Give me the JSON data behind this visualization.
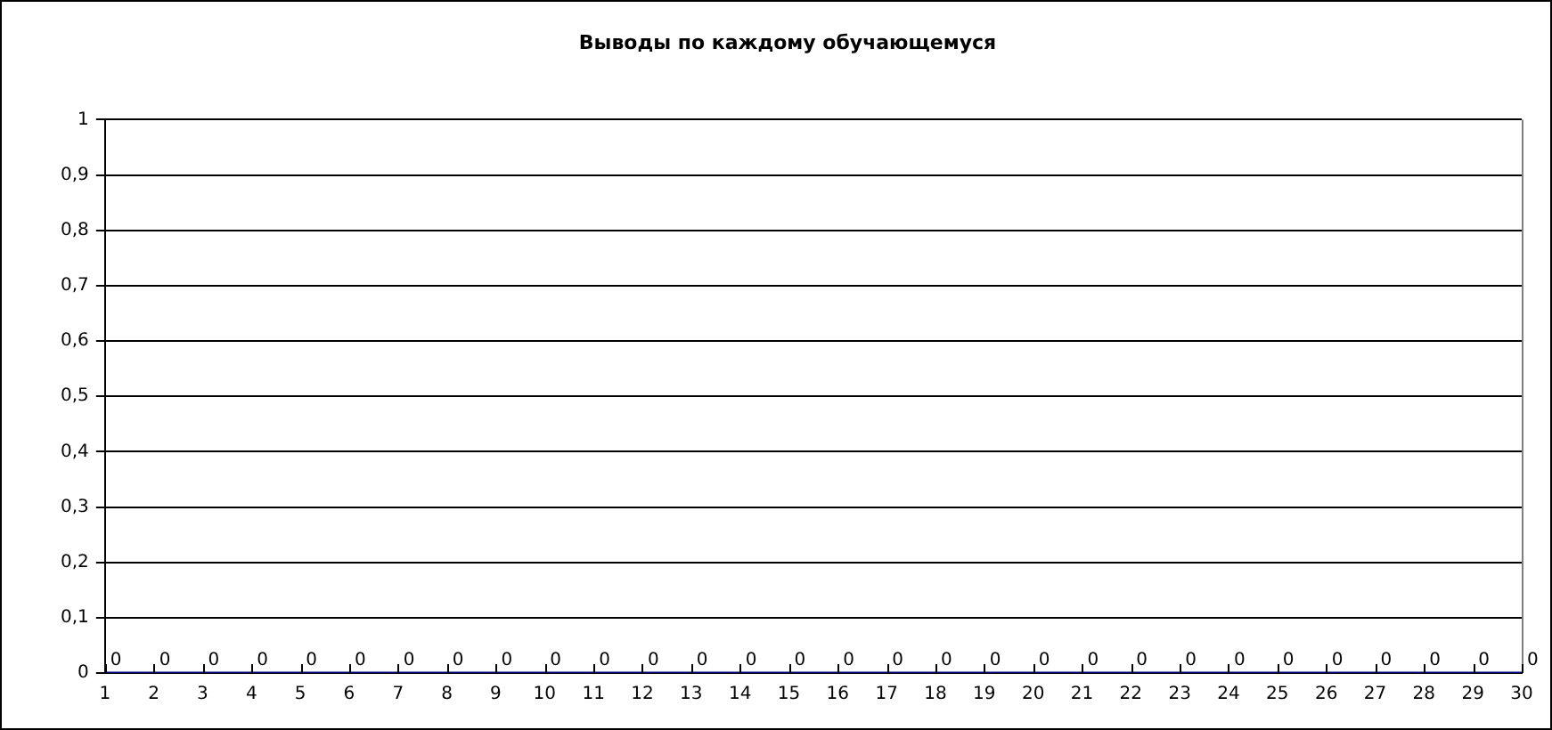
{
  "chart_data": {
    "type": "line",
    "title": "Выводы по каждому обучающемуся",
    "x": [
      1,
      2,
      3,
      4,
      5,
      6,
      7,
      8,
      9,
      10,
      11,
      12,
      13,
      14,
      15,
      16,
      17,
      18,
      19,
      20,
      21,
      22,
      23,
      24,
      25,
      26,
      27,
      28,
      29,
      30
    ],
    "series": [
      {
        "color": "#000080",
        "values": [
          0,
          0,
          0,
          0,
          0,
          0,
          0,
          0,
          0,
          0,
          0,
          0,
          0,
          0,
          0,
          0,
          0,
          0,
          0,
          0,
          0,
          0,
          0,
          0,
          0,
          0,
          0,
          0,
          0,
          0
        ]
      }
    ],
    "xlim": [
      1,
      30
    ],
    "xticks": [
      1,
      2,
      3,
      4,
      5,
      6,
      7,
      8,
      9,
      10,
      11,
      12,
      13,
      14,
      15,
      16,
      17,
      18,
      19,
      20,
      21,
      22,
      23,
      24,
      25,
      26,
      27,
      28,
      29,
      30
    ],
    "ylim": [
      0,
      1
    ],
    "yticks": [
      0,
      {
        "value": 0.1,
        "label": "0,1"
      },
      {
        "value": 0.2,
        "label": "0,2"
      },
      {
        "value": 0.3,
        "label": "0,3"
      },
      {
        "value": 0.4,
        "label": "0,4"
      },
      {
        "value": 0.5,
        "label": "0,5"
      },
      {
        "value": 0.6,
        "label": "0,6"
      },
      {
        "value": 0.7,
        "label": "0,7"
      },
      {
        "value": 0.8,
        "label": "0,8"
      },
      {
        "value": 0.9,
        "label": "0,9"
      },
      1
    ],
    "grid": "y",
    "legend": false,
    "marker": "none",
    "data_labels": true
  }
}
